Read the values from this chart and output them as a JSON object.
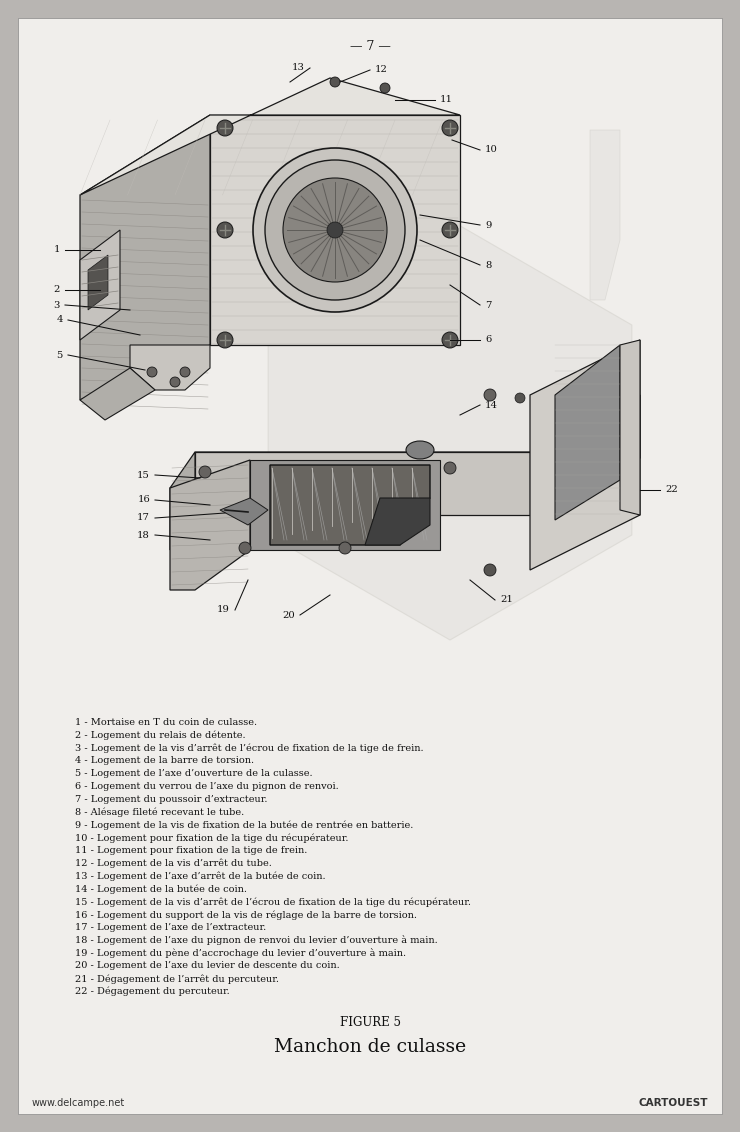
{
  "page_number": "— 7 —",
  "background_color": "#b8b5b2",
  "paper_color": "#f0eeeb",
  "figure_caption": "FIGURE 5",
  "figure_title": "Manchon de culasse",
  "legend_items": [
    "1 - Mortaise en T du coin de culasse.",
    "2 - Logement du relais de détente.",
    "3 - Logement de la vis d’arrêt de l’écrou de fixation de la tige de frein.",
    "4 - Logement de la barre de torsion.",
    "5 - Logement de l’axe d’ouverture de la culasse.",
    "6 - Logement du verrou de l’axe du pignon de renvoi.",
    "7 - Logement du poussoir d’extracteur.",
    "8 - Alésage fileté recevant le tube.",
    "9 - Logement de la vis de fixation de la butée de rentrée en batterie.",
    "10 - Logement pour fixation de la tige du récupérateur.",
    "11 - Logement pour fixation de la tige de frein.",
    "12 - Logement de la vis d’arrêt du tube.",
    "13 - Logement de l’axe d’arrêt de la butée de coin.",
    "14 - Logement de la butée de coin.",
    "15 - Logement de la vis d’arrêt de l’écrou de fixation de la tige du récupérateur.",
    "16 - Logement du support de la vis de réglage de la barre de torsion.",
    "17 - Logement de l’axe de l’extracteur.",
    "18 - Logement de l’axe du pignon de renvoi du levier d’ouverture à main.",
    "19 - Logement du pène d’accrochage du levier d’ouverture à main.",
    "20 - Logement de l’axe du levier de descente du coin.",
    "21 - Dégagement de l’arrêt du percuteur.",
    "22 - Dégagement du percuteur."
  ],
  "footer_left": "www.delcampe.net",
  "footer_right": "CARTOUEST"
}
